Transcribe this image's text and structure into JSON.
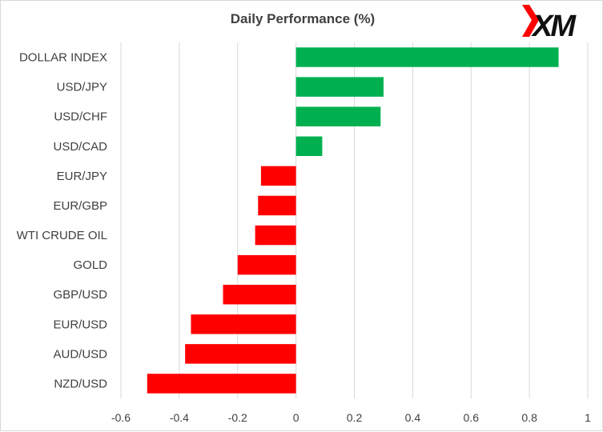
{
  "brand": {
    "logo_text": "XM"
  },
  "colors": {
    "positive": "#00b050",
    "negative": "#ff0000",
    "grid": "#d9d9d9",
    "text": "#404040"
  },
  "chart_data": {
    "type": "bar",
    "orientation": "horizontal",
    "title": "Daily Performance  (%)",
    "categories": [
      "DOLLAR INDEX",
      "USD/JPY",
      "USD/CHF",
      "USD/CAD",
      "EUR/JPY",
      "EUR/GBP",
      "WTI CRUDE OIL",
      "GOLD",
      "GBP/USD",
      "EUR/USD",
      "AUD/USD",
      "NZD/USD"
    ],
    "values": [
      0.9,
      0.3,
      0.29,
      0.09,
      -0.12,
      -0.13,
      -0.14,
      -0.2,
      -0.25,
      -0.36,
      -0.38,
      -0.51
    ],
    "xlim": [
      -0.6,
      1
    ],
    "xticks": [
      -0.6,
      -0.4,
      -0.2,
      0,
      0.2,
      0.4,
      0.6,
      0.8,
      1
    ],
    "xtick_labels": [
      "-0.6",
      "-0.4",
      "-0.2",
      "0",
      "0.2",
      "0.4",
      "0.6",
      "0.8",
      "1"
    ],
    "grid": true,
    "legend": "none"
  }
}
